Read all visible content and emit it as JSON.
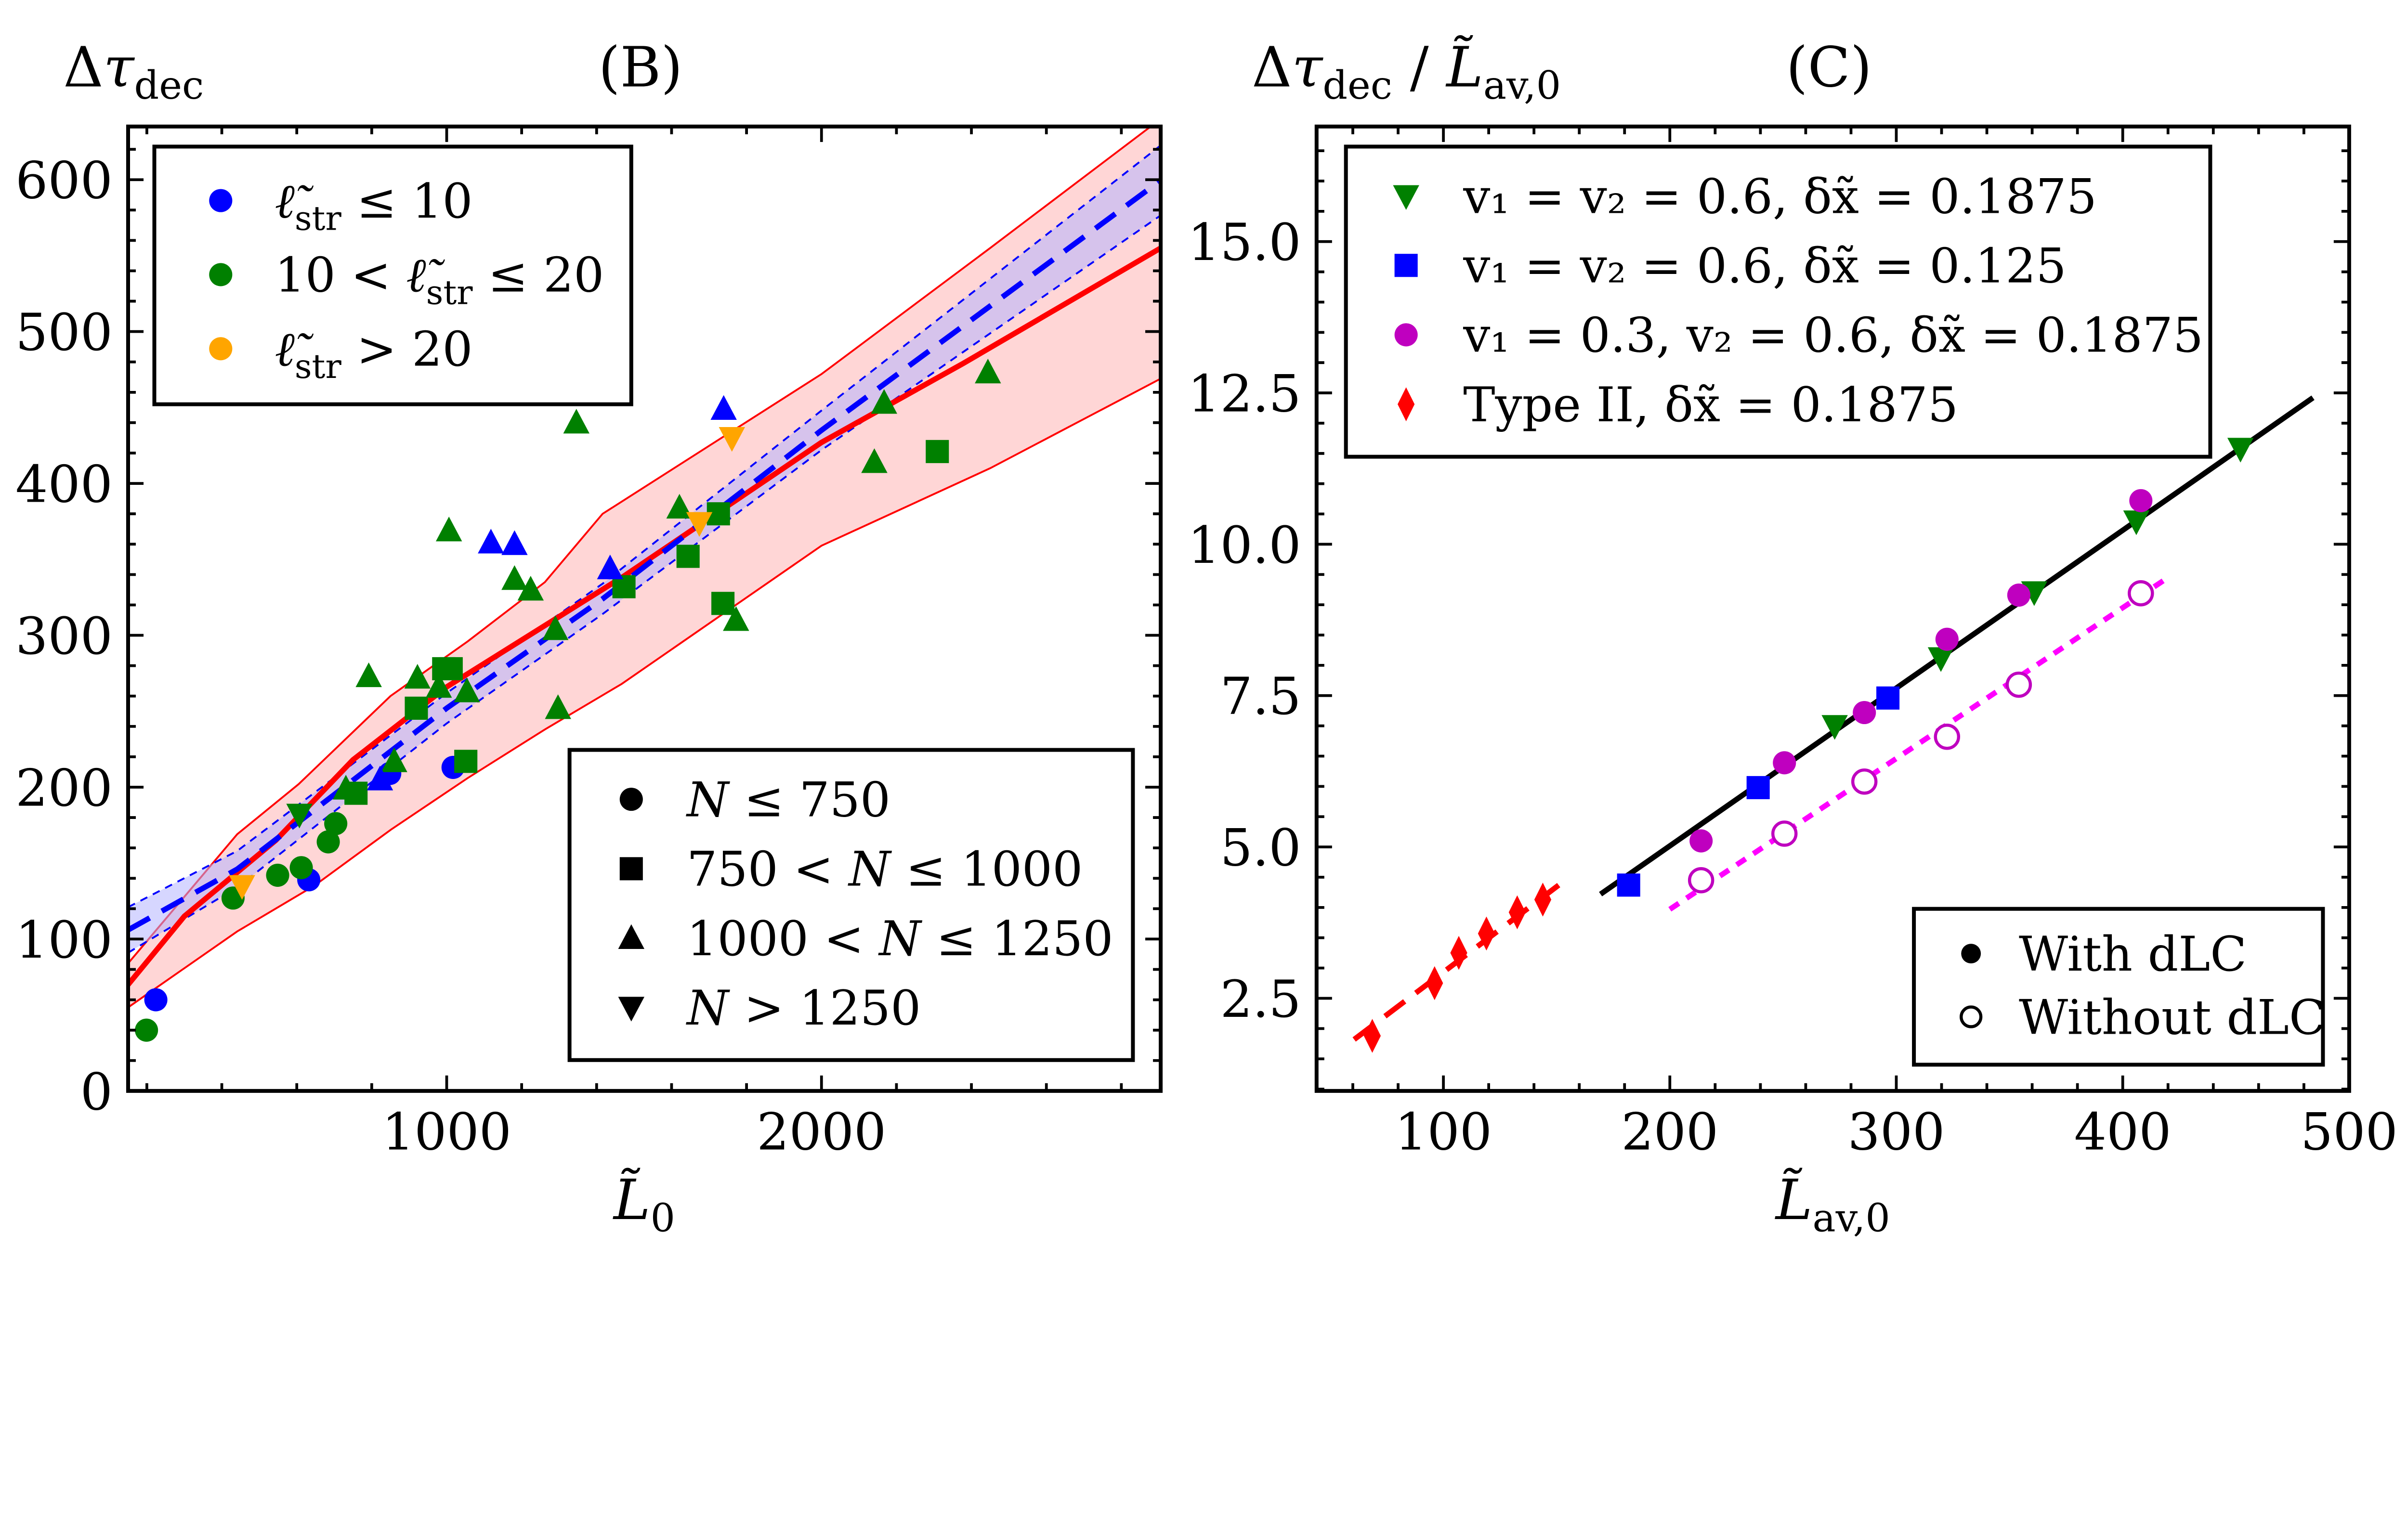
{
  "chart_data": [
    {
      "panel": "B",
      "type": "scatter",
      "title": "(B)",
      "ylabel": [
        [
          "Δ",
          ""
        ],
        [
          "τ",
          "i"
        ],
        [
          "dec",
          "sub"
        ]
      ],
      "xlabel": [
        [
          "L̃",
          "i"
        ],
        [
          "0",
          "sub"
        ]
      ],
      "xlim": [
        150,
        2905
      ],
      "ylim": [
        0,
        635
      ],
      "xticks": [
        "1000",
        "2000"
      ],
      "xminor_step": 200,
      "yticks": [
        "0",
        "100",
        "200",
        "300",
        "400",
        "500",
        "600"
      ],
      "yminor_step": 20,
      "grid": false,
      "colors": {
        "blue": "#0000ff",
        "green": "#008000",
        "orange": "#ffa500",
        "black": "#000000"
      },
      "legend_color": {
        "placement": "top-left",
        "entries": [
          {
            "color": "blue",
            "marker": "o",
            "label": [
              [
                "ℓ̃",
                "i"
              ],
              [
                "str",
                "sub"
              ],
              [
                " ≤ 10",
                ""
              ]
            ]
          },
          {
            "color": "green",
            "marker": "o",
            "label": [
              [
                "10 < ",
                ""
              ],
              [
                "ℓ̃",
                "i"
              ],
              [
                "str",
                "sub"
              ],
              [
                " ≤ 20",
                ""
              ]
            ]
          },
          {
            "color": "orange",
            "marker": "o",
            "label": [
              [
                "ℓ̃",
                "i"
              ],
              [
                "str",
                "sub"
              ],
              [
                " > 20",
                ""
              ]
            ]
          }
        ]
      },
      "legend_marker": {
        "placement": "lower-right",
        "entries": [
          {
            "color": "black",
            "marker": "o",
            "label": [
              [
                "N",
                "i"
              ],
              [
                " ≤ 750",
                ""
              ]
            ]
          },
          {
            "color": "black",
            "marker": "s",
            "label": [
              [
                "750 < ",
                ""
              ],
              [
                "N",
                "i"
              ],
              [
                " ≤ 1000",
                ""
              ]
            ]
          },
          {
            "color": "black",
            "marker": "^",
            "label": [
              [
                "1000 < ",
                ""
              ],
              [
                "N",
                "i"
              ],
              [
                " ≤ 1250",
                ""
              ]
            ]
          },
          {
            "color": "black",
            "marker": "v",
            "label": [
              [
                "N",
                "i"
              ],
              [
                " > 1250",
                ""
              ]
            ]
          }
        ]
      },
      "points": [
        {
          "x": 224,
          "y": 60,
          "c": "blue",
          "m": "o"
        },
        {
          "x": 199,
          "y": 40,
          "c": "green",
          "m": "o"
        },
        {
          "x": 430,
          "y": 127,
          "c": "green",
          "m": "o"
        },
        {
          "x": 632,
          "y": 139,
          "c": "blue",
          "m": "o"
        },
        {
          "x": 549,
          "y": 142,
          "c": "green",
          "m": "o"
        },
        {
          "x": 612,
          "y": 147,
          "c": "green",
          "m": "o"
        },
        {
          "x": 684,
          "y": 164,
          "c": "green",
          "m": "o"
        },
        {
          "x": 704,
          "y": 176,
          "c": "green",
          "m": "o"
        },
        {
          "x": 848,
          "y": 209,
          "c": "blue",
          "m": "o"
        },
        {
          "x": 1017,
          "y": 213,
          "c": "blue",
          "m": "o"
        },
        {
          "x": 758,
          "y": 196,
          "c": "green",
          "m": "s"
        },
        {
          "x": 919,
          "y": 252,
          "c": "green",
          "m": "s"
        },
        {
          "x": 992,
          "y": 278,
          "c": "green",
          "m": "s"
        },
        {
          "x": 1012,
          "y": 278,
          "c": "green",
          "m": "s"
        },
        {
          "x": 1051,
          "y": 217,
          "c": "green",
          "m": "s"
        },
        {
          "x": 1473,
          "y": 332,
          "c": "green",
          "m": "s"
        },
        {
          "x": 1644,
          "y": 352,
          "c": "green",
          "m": "s"
        },
        {
          "x": 1725,
          "y": 380,
          "c": "green",
          "m": "s"
        },
        {
          "x": 1737,
          "y": 321,
          "c": "green",
          "m": "s"
        },
        {
          "x": 2309,
          "y": 421,
          "c": "green",
          "m": "s"
        },
        {
          "x": 792,
          "y": 273,
          "c": "green",
          "m": "^"
        },
        {
          "x": 922,
          "y": 272,
          "c": "green",
          "m": "^"
        },
        {
          "x": 979,
          "y": 266,
          "c": "green",
          "m": "^"
        },
        {
          "x": 1054,
          "y": 263,
          "c": "green",
          "m": "^"
        },
        {
          "x": 731,
          "y": 199,
          "c": "green",
          "m": "^"
        },
        {
          "x": 860,
          "y": 217,
          "c": "green",
          "m": "^"
        },
        {
          "x": 1006,
          "y": 369,
          "c": "green",
          "m": "^"
        },
        {
          "x": 1181,
          "y": 337,
          "c": "green",
          "m": "^"
        },
        {
          "x": 1224,
          "y": 330,
          "c": "green",
          "m": "^"
        },
        {
          "x": 1290,
          "y": 304,
          "c": "green",
          "m": "^"
        },
        {
          "x": 1297,
          "y": 252,
          "c": "green",
          "m": "^"
        },
        {
          "x": 1346,
          "y": 440,
          "c": "green",
          "m": "^"
        },
        {
          "x": 1621,
          "y": 384,
          "c": "green",
          "m": "^"
        },
        {
          "x": 1772,
          "y": 310,
          "c": "green",
          "m": "^"
        },
        {
          "x": 2167,
          "y": 453,
          "c": "green",
          "m": "^"
        },
        {
          "x": 2141,
          "y": 414,
          "c": "green",
          "m": "^"
        },
        {
          "x": 2444,
          "y": 473,
          "c": "green",
          "m": "^"
        },
        {
          "x": 822,
          "y": 205,
          "c": "blue",
          "m": "^"
        },
        {
          "x": 1118,
          "y": 361,
          "c": "blue",
          "m": "^"
        },
        {
          "x": 1181,
          "y": 360,
          "c": "blue",
          "m": "^"
        },
        {
          "x": 1436,
          "y": 344,
          "c": "blue",
          "m": "^"
        },
        {
          "x": 1739,
          "y": 449,
          "c": "blue",
          "m": "^"
        },
        {
          "x": 454,
          "y": 135,
          "c": "orange",
          "m": "v"
        },
        {
          "x": 1674,
          "y": 374,
          "c": "orange",
          "m": "v"
        },
        {
          "x": 1761,
          "y": 430,
          "c": "orange",
          "m": "v"
        },
        {
          "x": 607,
          "y": 182,
          "c": "green",
          "m": "v"
        }
      ],
      "bands": [
        {
          "color": "#ffd6d6",
          "edge": "#ff0000",
          "edge_style": "solid",
          "upper": [
            [
              150,
              84
            ],
            [
              441,
              169
            ],
            [
              605,
              202
            ],
            [
              850,
              260
            ],
            [
              1056,
              296
            ],
            [
              1262,
              335
            ],
            [
              1416,
              380
            ],
            [
              2000,
              472
            ],
            [
              2450,
              555
            ],
            [
              2905,
              640
            ]
          ],
          "lower": [
            [
              150,
              55
            ],
            [
              441,
              105
            ],
            [
              646,
              135
            ],
            [
              851,
              172
            ],
            [
              1056,
              206
            ],
            [
              1262,
              238
            ],
            [
              1467,
              268
            ],
            [
              2000,
              359
            ],
            [
              2450,
              410
            ],
            [
              2905,
              469
            ]
          ]
        },
        {
          "color": "#b4b4ff",
          "opacity": 0.55,
          "edge": "#0000ff",
          "edge_style": "dotted",
          "upper": [
            [
              150,
              121
            ],
            [
              441,
              158
            ],
            [
              1000,
              262
            ],
            [
              1416,
              334
            ],
            [
              2000,
              448
            ],
            [
              2902,
              622
            ]
          ],
          "lower": [
            [
              150,
              91
            ],
            [
              441,
              134
            ],
            [
              1000,
              242
            ],
            [
              1416,
              314
            ],
            [
              2000,
              422
            ],
            [
              2902,
              576
            ]
          ]
        }
      ],
      "lines": [
        {
          "color": "#ff0000",
          "style": "solid",
          "points": [
            [
              150,
              70
            ],
            [
              300,
              115
            ],
            [
              544,
              165
            ],
            [
              750,
              218
            ],
            [
              1000,
              266
            ],
            [
              1473,
              339
            ],
            [
              2000,
              427
            ],
            [
              2378,
              479
            ],
            [
              2905,
              555
            ]
          ]
        },
        {
          "color": "#0000ff",
          "style": "dashed",
          "points": [
            [
              150,
              106
            ],
            [
              441,
              146
            ],
            [
              1000,
              252
            ],
            [
              1416,
              324
            ],
            [
              2000,
              435
            ],
            [
              2902,
              599
            ]
          ]
        }
      ]
    },
    {
      "panel": "C",
      "type": "scatter",
      "title": "(C)",
      "ylabel": [
        [
          "Δ",
          ""
        ],
        [
          "τ",
          "i"
        ],
        [
          "dec",
          "sub"
        ],
        [
          " / ",
          ""
        ],
        [
          "L̃",
          "i"
        ],
        [
          "av,0",
          "sub"
        ]
      ],
      "xlabel": [
        [
          "L̃",
          "i"
        ],
        [
          "av,0",
          "sub"
        ]
      ],
      "xlim": [
        44,
        500
      ],
      "ylim": [
        0.97,
        16.9
      ],
      "xticks": [
        "100",
        "200",
        "300",
        "400",
        "500"
      ],
      "xminor_step": 20,
      "yticks": [
        "2.5",
        "5.0",
        "7.5",
        "10.0",
        "12.5",
        "15.0"
      ],
      "yminor_step": 0.5,
      "grid": false,
      "legend_series": {
        "placement": "top-left",
        "entries": [
          {
            "color": "#008000",
            "marker": "v",
            "label": "v₁ = v₂ = 0.6, δx̃ = 0.1875"
          },
          {
            "color": "#0000ff",
            "marker": "s",
            "label": "v₁ = v₂ = 0.6, δx̃ = 0.125"
          },
          {
            "color": "#bf00bf",
            "marker": "o",
            "label": "v₁ = 0.3, v₂ = 0.6, δx̃ = 0.1875"
          },
          {
            "color": "#ff0000",
            "marker": "d",
            "label": "Type II, δx̃ = 0.1875"
          }
        ]
      },
      "legend_fill": {
        "placement": "lower-right",
        "entries": [
          {
            "marker": "o",
            "filled": true,
            "label": "With dLC"
          },
          {
            "marker": "o",
            "filled": false,
            "label": "Without dLC"
          }
        ]
      },
      "series": [
        {
          "name": "v₁ = v₂ = 0.6, δx̃ = 0.1875",
          "color": "#008000",
          "marker": "v",
          "filled": true,
          "points": [
            [
              272.8,
              7.0
            ],
            [
              319.7,
              8.12
            ],
            [
              360.9,
              9.21
            ],
            [
              406,
              10.38
            ],
            [
              452,
              11.58
            ]
          ]
        },
        {
          "name": "v₁ = v₂ = 0.6, δx̃ = 0.125",
          "color": "#0000ff",
          "marker": "s",
          "filled": true,
          "points": [
            [
              181.8,
              4.37
            ],
            [
              239,
              5.98
            ],
            [
              296.3,
              7.46
            ]
          ]
        },
        {
          "name": "v₁ = 0.3, v₂ = 0.6, δx̃ = 0.1875",
          "color": "#bf00bf",
          "marker": "o",
          "filled": true,
          "points": [
            [
              213.8,
              5.1
            ],
            [
              250.6,
              6.39
            ],
            [
              285.9,
              7.22
            ],
            [
              322.4,
              8.43
            ],
            [
              354.1,
              9.16
            ],
            [
              408,
              10.72
            ]
          ]
        },
        {
          "name": "v₁ = 0.3, v₂ = 0.6, δx̃ = 0.1875",
          "color": "#bf00bf",
          "marker": "o",
          "filled": false,
          "points": [
            [
              213.8,
              4.45
            ],
            [
              250.6,
              5.22
            ],
            [
              285.9,
              6.08
            ],
            [
              322.4,
              6.82
            ],
            [
              354.1,
              7.68
            ],
            [
              408,
              9.19
            ]
          ]
        },
        {
          "name": "Type II, δx̃ = 0.1875",
          "color": "#ff0000",
          "marker": "d",
          "filled": true,
          "points": [
            [
              68.6,
              1.88
            ],
            [
              96.1,
              2.75
            ],
            [
              106.8,
              3.25
            ],
            [
              119,
              3.57
            ],
            [
              132.6,
              3.92
            ],
            [
              143.9,
              4.13
            ]
          ]
        }
      ],
      "lines": [
        {
          "color": "#000000",
          "style": "solid",
          "points": [
            [
              169.4,
              4.22
            ],
            [
              484,
              12.42
            ]
          ]
        },
        {
          "color": "#ff0000",
          "style": "dashed",
          "points": [
            [
              60.6,
              1.82
            ],
            [
              152,
              4.4
            ]
          ]
        },
        {
          "color": "#ff00ff",
          "style": "dotted",
          "points": [
            [
              200,
              3.97
            ],
            [
              420,
              9.45
            ]
          ]
        }
      ]
    }
  ]
}
